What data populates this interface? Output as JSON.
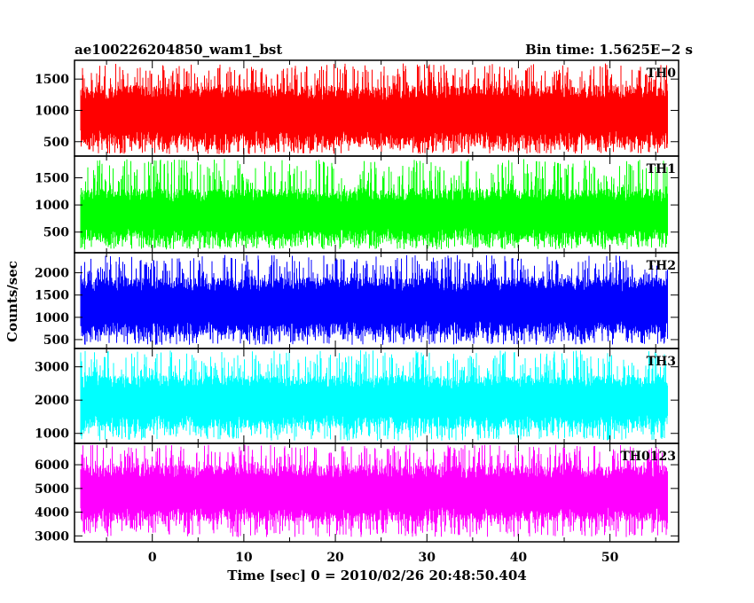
{
  "header": {
    "left": "ae100226204850_wam1_bst",
    "right": "Bin time: 1.5625E−2 s"
  },
  "chart_data": {
    "type": "line",
    "title": "ae100226204850_wam1_bst",
    "subtitle": "Bin time: 1.5625E−2 s",
    "xlabel": "Time [sec] 0 = 2010/02/26 20:48:50.404",
    "ylabel": "Counts/sec",
    "xlim": [
      -8.5,
      57.5
    ],
    "data_x_range": [
      -7.8,
      56.2
    ],
    "x_ticks": [
      0,
      10,
      20,
      30,
      40,
      50
    ],
    "grid": false,
    "panels": [
      {
        "name": "TH0",
        "color": "#ff0000",
        "ylim": [
          270,
          1800
        ],
        "y_ticks": [
          500,
          1000,
          1500
        ],
        "band_low": 300,
        "band_high": 1750,
        "core_low": 440,
        "core_high": 1400
      },
      {
        "name": "TH1",
        "color": "#00ff00",
        "ylim": [
          120,
          1900
        ],
        "y_ticks": [
          500,
          1000,
          1500
        ],
        "band_low": 180,
        "band_high": 1850,
        "core_low": 330,
        "core_high": 1300
      },
      {
        "name": "TH2",
        "color": "#0000ff",
        "ylim": [
          300,
          2450
        ],
        "y_ticks": [
          500,
          1000,
          1500,
          2000
        ],
        "band_low": 380,
        "band_high": 2400,
        "core_low": 600,
        "core_high": 1900
      },
      {
        "name": "TH3",
        "color": "#00ffff",
        "ylim": [
          700,
          3550
        ],
        "y_ticks": [
          1000,
          2000,
          3000
        ],
        "band_low": 780,
        "band_high": 3500,
        "core_low": 1150,
        "core_high": 2750
      },
      {
        "name": "TH0123",
        "color": "#ff00ff",
        "ylim": [
          2750,
          6900
        ],
        "y_ticks": [
          3000,
          4000,
          5000,
          6000
        ],
        "band_low": 2950,
        "band_high": 6850,
        "core_low": 3600,
        "core_high": 6000
      }
    ]
  }
}
